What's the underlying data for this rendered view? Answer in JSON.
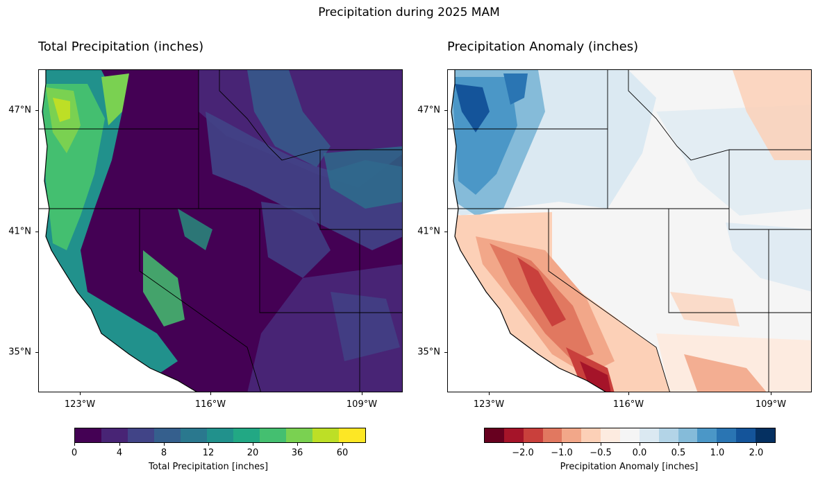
{
  "figure": {
    "title": "Precipitation during 2025 MAM"
  },
  "panels": [
    {
      "title": "Total Precipitation (inches)",
      "x_ticks": [
        "123°W",
        "116°W",
        "109°W"
      ],
      "y_ticks": [
        "47°N",
        "41°N",
        "35°N"
      ],
      "colorbar": {
        "label": "Total Precipitation [inches]",
        "ticks": [
          "0",
          "4",
          "8",
          "12",
          "20",
          "36",
          "60"
        ],
        "colors": [
          "#440154",
          "#482475",
          "#414487",
          "#355f8d",
          "#2a788e",
          "#21918c",
          "#22a884",
          "#44bf70",
          "#7ad151",
          "#bddf26",
          "#fde725"
        ]
      }
    },
    {
      "title": "Precipitation Anomaly (inches)",
      "x_ticks": [
        "123°W",
        "116°W",
        "109°W"
      ],
      "y_ticks": [
        "47°N",
        "41°N",
        "35°N"
      ],
      "colorbar": {
        "label": "Precipitation Anomaly [inches]",
        "ticks": [
          "−2.0",
          "−1.0",
          "−0.5",
          "0.0",
          "0.5",
          "1.0",
          "2.0"
        ],
        "colors": [
          "#67001f",
          "#a51429",
          "#c9403c",
          "#e17860",
          "#f2a789",
          "#fcd0b7",
          "#fdebe0",
          "#f5f5f5",
          "#dbe9f2",
          "#b3d4e7",
          "#85bbd9",
          "#4b97c7",
          "#2a75b3",
          "#14549a",
          "#053061"
        ]
      }
    }
  ]
}
